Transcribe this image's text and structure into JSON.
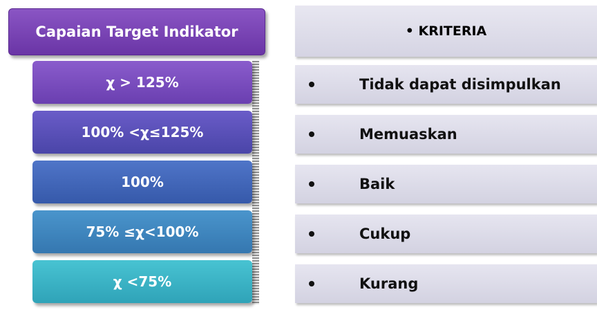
{
  "header": {
    "left": "Capaian Target Indikator",
    "right": "• KRITERIA"
  },
  "rows": [
    {
      "range": "χ > 125%",
      "criteria": "Tidak dapat disimpulkan"
    },
    {
      "range": "100% <χ≤125%",
      "criteria": "Memuaskan"
    },
    {
      "range": "100%",
      "criteria": "Baik"
    },
    {
      "range": "75% ≤χ<100%",
      "criteria": "Cukup"
    },
    {
      "range": "χ <75%",
      "criteria": "Kurang"
    }
  ]
}
